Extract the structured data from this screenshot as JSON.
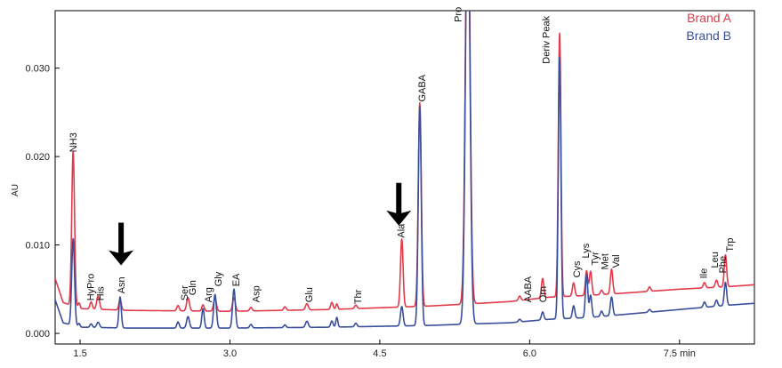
{
  "chart_data": {
    "type": "line",
    "title": "",
    "xlabel": "min",
    "ylabel": "AU",
    "xlim": [
      1.25,
      8.25
    ],
    "ylim": [
      -0.0012,
      0.0365
    ],
    "x_ticks": [
      {
        "value": 1.5,
        "label": "1.5"
      },
      {
        "value": 3.0,
        "label": "3.0"
      },
      {
        "value": 4.5,
        "label": "4.5"
      },
      {
        "value": 6.0,
        "label": "6.0"
      },
      {
        "value": 7.5,
        "label": "7.5 min"
      }
    ],
    "y_ticks": [
      {
        "value": 0.0,
        "label": "0.000"
      },
      {
        "value": 0.01,
        "label": "0.010"
      },
      {
        "value": 0.02,
        "label": "0.020"
      },
      {
        "value": 0.03,
        "label": "0.030"
      }
    ],
    "grid": false,
    "legend_position": "top-right",
    "series": [
      {
        "name": "Brand A",
        "color": "#e23a4b",
        "baseline": [
          [
            1.25,
            0.0062
          ],
          [
            1.33,
            0.0035
          ],
          [
            1.5,
            0.0028
          ],
          [
            2.0,
            0.0026
          ],
          [
            3.0,
            0.0025
          ],
          [
            4.0,
            0.0027
          ],
          [
            4.5,
            0.0029
          ],
          [
            5.0,
            0.0031
          ],
          [
            5.5,
            0.0034
          ],
          [
            5.8,
            0.0036
          ],
          [
            6.2,
            0.0041
          ],
          [
            6.6,
            0.0043
          ],
          [
            7.0,
            0.0046
          ],
          [
            7.5,
            0.005
          ],
          [
            8.0,
            0.0053
          ],
          [
            8.25,
            0.0055
          ]
        ],
        "peaks": [
          {
            "x": 1.43,
            "h": 0.0175,
            "w": 0.014
          },
          {
            "x": 1.49,
            "h": 0.0006,
            "w": 0.01
          },
          {
            "x": 1.61,
            "h": 0.0008,
            "w": 0.012
          },
          {
            "x": 1.68,
            "h": 0.0015,
            "w": 0.014
          },
          {
            "x": 1.9,
            "h": 0.0012,
            "w": 0.012
          },
          {
            "x": 2.48,
            "h": 0.0006,
            "w": 0.012
          },
          {
            "x": 2.58,
            "h": 0.0015,
            "w": 0.014
          },
          {
            "x": 2.73,
            "h": 0.0007,
            "w": 0.012
          },
          {
            "x": 2.85,
            "h": 0.0015,
            "w": 0.014
          },
          {
            "x": 3.04,
            "h": 0.0015,
            "w": 0.014
          },
          {
            "x": 3.21,
            "h": 0.0004,
            "w": 0.012
          },
          {
            "x": 3.55,
            "h": 0.0004,
            "w": 0.012
          },
          {
            "x": 3.77,
            "h": 0.0007,
            "w": 0.014
          },
          {
            "x": 4.02,
            "h": 0.0008,
            "w": 0.012
          },
          {
            "x": 4.07,
            "h": 0.0006,
            "w": 0.01
          },
          {
            "x": 4.26,
            "h": 0.0004,
            "w": 0.012
          },
          {
            "x": 4.72,
            "h": 0.0077,
            "w": 0.013
          },
          {
            "x": 4.9,
            "h": 0.023,
            "w": 0.015
          },
          {
            "x": 5.38,
            "h": 0.05,
            "w": 0.022
          },
          {
            "x": 5.9,
            "h": 0.0005,
            "w": 0.012
          },
          {
            "x": 6.13,
            "h": 0.0022,
            "w": 0.012
          },
          {
            "x": 6.3,
            "h": 0.0298,
            "w": 0.013
          },
          {
            "x": 6.44,
            "h": 0.0015,
            "w": 0.012
          },
          {
            "x": 6.57,
            "h": 0.0028,
            "w": 0.012
          },
          {
            "x": 6.61,
            "h": 0.0027,
            "w": 0.012
          },
          {
            "x": 6.72,
            "h": 0.0005,
            "w": 0.012
          },
          {
            "x": 6.82,
            "h": 0.0028,
            "w": 0.012
          },
          {
            "x": 7.2,
            "h": 0.0005,
            "w": 0.012
          },
          {
            "x": 7.75,
            "h": 0.0006,
            "w": 0.012
          },
          {
            "x": 7.87,
            "h": 0.0008,
            "w": 0.012
          },
          {
            "x": 7.96,
            "h": 0.0036,
            "w": 0.012
          }
        ]
      },
      {
        "name": "Brand B",
        "color": "#3a4f9b",
        "baseline": [
          [
            1.25,
            0.0038
          ],
          [
            1.33,
            0.0012
          ],
          [
            1.5,
            0.0007
          ],
          [
            2.0,
            0.0006
          ],
          [
            3.0,
            0.0006
          ],
          [
            4.0,
            0.0007
          ],
          [
            4.5,
            0.0008
          ],
          [
            5.0,
            0.0009
          ],
          [
            5.5,
            0.0011
          ],
          [
            5.8,
            0.0012
          ],
          [
            6.2,
            0.0016
          ],
          [
            6.6,
            0.0018
          ],
          [
            7.0,
            0.0022
          ],
          [
            7.5,
            0.0027
          ],
          [
            8.0,
            0.0032
          ],
          [
            8.25,
            0.0034
          ]
        ],
        "peaks": [
          {
            "x": 1.43,
            "h": 0.0098,
            "w": 0.014
          },
          {
            "x": 1.49,
            "h": 0.0004,
            "w": 0.01
          },
          {
            "x": 1.61,
            "h": 0.0004,
            "w": 0.012
          },
          {
            "x": 1.68,
            "h": 0.0006,
            "w": 0.014
          },
          {
            "x": 1.9,
            "h": 0.0035,
            "w": 0.012
          },
          {
            "x": 2.48,
            "h": 0.0007,
            "w": 0.012
          },
          {
            "x": 2.58,
            "h": 0.0013,
            "w": 0.014
          },
          {
            "x": 2.73,
            "h": 0.0022,
            "w": 0.012
          },
          {
            "x": 2.85,
            "h": 0.0038,
            "w": 0.014
          },
          {
            "x": 3.04,
            "h": 0.0044,
            "w": 0.014
          },
          {
            "x": 3.21,
            "h": 0.0004,
            "w": 0.012
          },
          {
            "x": 3.55,
            "h": 0.0003,
            "w": 0.012
          },
          {
            "x": 3.77,
            "h": 0.0007,
            "w": 0.014
          },
          {
            "x": 4.02,
            "h": 0.0007,
            "w": 0.012
          },
          {
            "x": 4.07,
            "h": 0.0011,
            "w": 0.01
          },
          {
            "x": 4.26,
            "h": 0.0004,
            "w": 0.012
          },
          {
            "x": 4.72,
            "h": 0.0022,
            "w": 0.013
          },
          {
            "x": 4.9,
            "h": 0.0248,
            "w": 0.015
          },
          {
            "x": 5.38,
            "h": 0.05,
            "w": 0.022
          },
          {
            "x": 5.9,
            "h": 0.0003,
            "w": 0.012
          },
          {
            "x": 6.13,
            "h": 0.0009,
            "w": 0.012
          },
          {
            "x": 6.3,
            "h": 0.0296,
            "w": 0.013
          },
          {
            "x": 6.44,
            "h": 0.0014,
            "w": 0.012
          },
          {
            "x": 6.57,
            "h": 0.0049,
            "w": 0.012
          },
          {
            "x": 6.61,
            "h": 0.0025,
            "w": 0.012
          },
          {
            "x": 6.72,
            "h": 0.0006,
            "w": 0.012
          },
          {
            "x": 6.82,
            "h": 0.0021,
            "w": 0.012
          },
          {
            "x": 7.2,
            "h": 0.0003,
            "w": 0.012
          },
          {
            "x": 7.75,
            "h": 0.0006,
            "w": 0.012
          },
          {
            "x": 7.87,
            "h": 0.0007,
            "w": 0.012
          },
          {
            "x": 7.96,
            "h": 0.0026,
            "w": 0.012
          }
        ]
      }
    ],
    "annotations": [
      {
        "text": "NH3",
        "x": 1.43,
        "y": 0.0205
      },
      {
        "text": "HyPro",
        "x": 1.6,
        "y": 0.0037
      },
      {
        "text": "His",
        "x": 1.7,
        "y": 0.0037
      },
      {
        "text": "Asn",
        "x": 1.91,
        "y": 0.0045
      },
      {
        "text": "Ser",
        "x": 2.54,
        "y": 0.0037
      },
      {
        "text": "Gln",
        "x": 2.62,
        "y": 0.0043
      },
      {
        "text": "Arg",
        "x": 2.78,
        "y": 0.0035
      },
      {
        "text": "Gly",
        "x": 2.88,
        "y": 0.0053
      },
      {
        "text": "EA",
        "x": 3.06,
        "y": 0.0053
      },
      {
        "text": "Asp",
        "x": 3.26,
        "y": 0.0035
      },
      {
        "text": "Glu",
        "x": 3.79,
        "y": 0.0035
      },
      {
        "text": "Thr",
        "x": 4.28,
        "y": 0.0033
      },
      {
        "text": "Ala",
        "x": 4.71,
        "y": 0.0108
      },
      {
        "text": "GABA",
        "x": 4.92,
        "y": 0.0262
      },
      {
        "text": "Pro",
        "x": 5.28,
        "y": 0.0352
      },
      {
        "text": "AABA",
        "x": 5.98,
        "y": 0.0035
      },
      {
        "text": "Orn",
        "x": 6.13,
        "y": 0.0035
      },
      {
        "text": "Deriv Peak",
        "x": 6.16,
        "y": 0.0305
      },
      {
        "text": "Cys",
        "x": 6.47,
        "y": 0.0063
      },
      {
        "text": "Lys",
        "x": 6.56,
        "y": 0.0085
      },
      {
        "text": "Tyr",
        "x": 6.65,
        "y": 0.0077
      },
      {
        "text": "Met",
        "x": 6.75,
        "y": 0.0072
      },
      {
        "text": "Val",
        "x": 6.86,
        "y": 0.0074
      },
      {
        "text": "Ile",
        "x": 7.74,
        "y": 0.0062
      },
      {
        "text": "Leu",
        "x": 7.85,
        "y": 0.0074
      },
      {
        "text": "Phe",
        "x": 7.93,
        "y": 0.0068
      },
      {
        "text": "Trp",
        "x": 8.0,
        "y": 0.0092
      }
    ],
    "arrows": [
      {
        "x": 1.91,
        "y": 0.0077
      },
      {
        "x": 4.69,
        "y": 0.0122
      }
    ]
  }
}
